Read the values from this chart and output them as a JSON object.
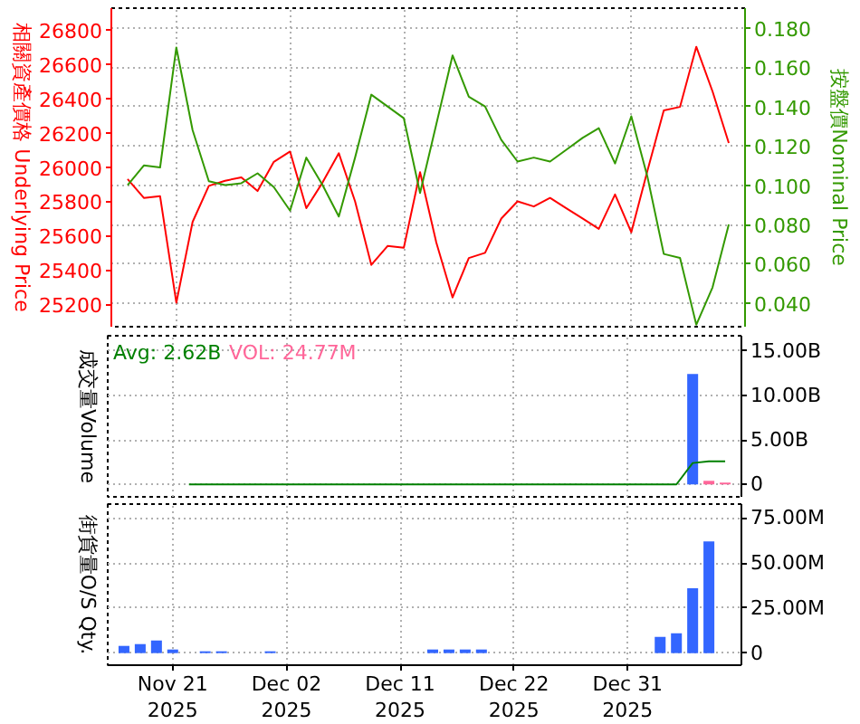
{
  "chart_data": [
    {
      "type": "line",
      "categories": [
        null,
        null,
        null,
        null,
        null,
        null,
        null,
        null,
        null,
        null,
        null,
        null,
        null,
        null,
        null,
        null,
        null,
        null,
        null,
        null,
        null,
        null,
        null,
        null,
        null,
        null,
        null,
        null,
        null,
        null,
        null,
        null,
        null,
        null,
        null,
        null,
        null,
        null
      ],
      "ylabel": "相關資產價格 Underlying Price",
      "y2label": "按盤價Nominal Price",
      "ylim": [
        25070,
        26925
      ],
      "yticks": [
        25200,
        25400,
        25600,
        25800,
        26000,
        26200,
        26400,
        26600,
        26800
      ],
      "y2lim": [
        0.028,
        0.19
      ],
      "y2ticks": [
        {
          "value": 0.04,
          "label": "0.040"
        },
        {
          "value": 0.06,
          "label": "0.060"
        },
        {
          "value": 0.08,
          "label": "0.080"
        },
        {
          "value": 0.1,
          "label": "0.100"
        },
        {
          "value": 0.12,
          "label": "0.120"
        },
        {
          "value": 0.14,
          "label": "0.140"
        },
        {
          "value": 0.16,
          "label": "0.160"
        },
        {
          "value": 0.18,
          "label": "0.180"
        }
      ],
      "grid": true,
      "tick_labels": "y",
      "series": [
        {
          "color": "#ff0000",
          "values": [
            25930,
            25820,
            25830,
            25210,
            25680,
            25890,
            25920,
            25940,
            25860,
            26030,
            26090,
            25760,
            25910,
            26080,
            25800,
            25430,
            25540,
            25530,
            25970,
            25560,
            25240,
            25470,
            25500,
            25700,
            25800,
            25770,
            25820,
            25760,
            25700,
            25640,
            25840,
            25620,
            25980,
            26330,
            26350,
            26700,
            26440,
            26140
          ]
        },
        {
          "color": "#339900",
          "axis": "y2",
          "values": [
            0.1,
            0.11,
            0.109,
            0.17,
            0.128,
            0.102,
            0.1,
            0.101,
            0.106,
            0.099,
            0.087,
            0.114,
            0.1,
            0.084,
            0.114,
            0.146,
            0.14,
            0.134,
            0.096,
            0.131,
            0.166,
            0.145,
            0.14,
            0.123,
            0.112,
            0.114,
            0.112,
            0.118,
            0.124,
            0.129,
            0.111,
            0.135,
            0.104,
            0.065,
            0.063,
            0.029,
            0.048,
            0.08
          ]
        }
      ]
    },
    {
      "type": "bar",
      "categories": [
        null,
        null,
        null,
        null,
        null,
        null,
        null,
        null,
        null,
        null,
        null,
        null,
        null,
        null,
        null,
        null,
        null,
        null,
        null,
        null,
        null,
        null,
        null,
        null,
        null,
        null,
        null,
        null,
        null,
        null,
        null,
        null,
        null,
        null,
        null,
        null,
        null,
        null
      ],
      "ylabel": "成交量Volume",
      "ylim": [
        -1.4,
        16.7
      ],
      "yticks": [
        0,
        {
          "value": 5,
          "label": "5.00B"
        },
        {
          "value": 10,
          "label": "10.00B"
        },
        {
          "value": 15,
          "label": "15.00B"
        }
      ],
      "grid": true,
      "tick_labels": "y",
      "legend": "top left",
      "series": [
        {
          "name": "Avg: 2.62B",
          "type": "line",
          "color": "#008000",
          "values": [
            null,
            null,
            null,
            null,
            0,
            0,
            0,
            0,
            0,
            0,
            0,
            0,
            0,
            0,
            0,
            0,
            0,
            0,
            0,
            0,
            0,
            0,
            0,
            0,
            0,
            0,
            0,
            0,
            0,
            0,
            0,
            0,
            0,
            0,
            0,
            2.4,
            2.6,
            2.6
          ]
        },
        {
          "color": "#3366ff",
          "values": [
            null,
            null,
            null,
            null,
            null,
            null,
            null,
            null,
            null,
            null,
            null,
            null,
            null,
            null,
            null,
            null,
            null,
            null,
            null,
            null,
            null,
            null,
            null,
            null,
            null,
            null,
            null,
            null,
            null,
            null,
            null,
            null,
            null,
            null,
            null,
            12.4,
            null,
            null
          ]
        },
        {
          "name": "VOL: 24.77M",
          "color": "#ff6699",
          "values": [
            null,
            null,
            null,
            null,
            null,
            null,
            null,
            null,
            null,
            null,
            null,
            null,
            null,
            null,
            null,
            null,
            null,
            null,
            null,
            null,
            null,
            null,
            null,
            null,
            null,
            null,
            null,
            null,
            null,
            null,
            null,
            null,
            null,
            null,
            null,
            null,
            0.4,
            0.2
          ]
        }
      ]
    },
    {
      "type": "bar",
      "categories": [
        null,
        null,
        null,
        "Nov 21\n2025",
        null,
        null,
        null,
        null,
        null,
        null,
        "Dec 02\n2025",
        null,
        null,
        null,
        null,
        null,
        null,
        "Dec 11\n2025",
        null,
        null,
        null,
        null,
        null,
        null,
        "Dec 22\n2025",
        null,
        null,
        null,
        null,
        null,
        null,
        "Dec 31\n2025",
        null,
        null,
        null,
        null,
        null,
        null
      ],
      "ylabel": "街貨量O/S Qty.",
      "ylim": [
        -6.7,
        82.7
      ],
      "yticks": [
        0,
        {
          "value": 25,
          "label": "25.00M"
        },
        {
          "value": 50,
          "label": "50.00M"
        },
        {
          "value": 75,
          "label": "75.00M"
        }
      ],
      "grid": true,
      "series": [
        {
          "color": "#3366ff",
          "values": [
            4,
            5,
            7,
            2,
            null,
            1,
            1,
            null,
            null,
            1,
            null,
            null,
            null,
            null,
            null,
            null,
            null,
            null,
            null,
            2,
            2,
            2,
            2,
            null,
            null,
            null,
            null,
            null,
            null,
            null,
            null,
            null,
            null,
            9,
            11,
            36,
            62,
            null
          ]
        }
      ]
    }
  ]
}
